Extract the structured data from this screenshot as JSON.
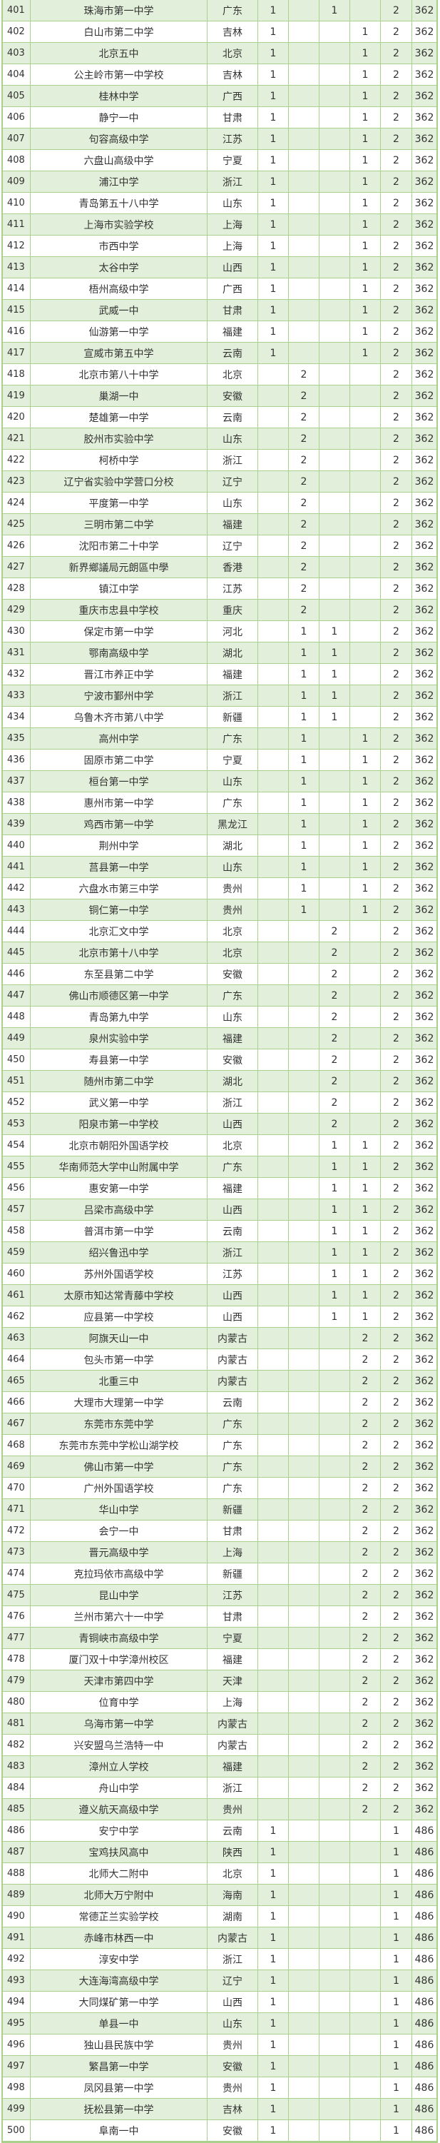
{
  "colors": {
    "stripe": "#e2efda",
    "border": "#a9d18e"
  },
  "rows": [
    [
      "401",
      "珠海市第一中学",
      "广东",
      "1",
      "",
      "1",
      "",
      "2",
      "362"
    ],
    [
      "402",
      "白山市第二中学",
      "吉林",
      "1",
      "",
      "",
      "1",
      "2",
      "362"
    ],
    [
      "403",
      "北京五中",
      "北京",
      "1",
      "",
      "",
      "1",
      "2",
      "362"
    ],
    [
      "404",
      "公主岭市第一中学校",
      "吉林",
      "1",
      "",
      "",
      "1",
      "2",
      "362"
    ],
    [
      "405",
      "桂林中学",
      "广西",
      "1",
      "",
      "",
      "1",
      "2",
      "362"
    ],
    [
      "406",
      "静宁一中",
      "甘肃",
      "1",
      "",
      "",
      "1",
      "2",
      "362"
    ],
    [
      "407",
      "句容高级中学",
      "江苏",
      "1",
      "",
      "",
      "1",
      "2",
      "362"
    ],
    [
      "408",
      "六盘山高级中学",
      "宁夏",
      "1",
      "",
      "",
      "1",
      "2",
      "362"
    ],
    [
      "409",
      "浦江中学",
      "浙江",
      "1",
      "",
      "",
      "1",
      "2",
      "362"
    ],
    [
      "410",
      "青岛第五十八中学",
      "山东",
      "1",
      "",
      "",
      "1",
      "2",
      "362"
    ],
    [
      "411",
      "上海市实验学校",
      "上海",
      "1",
      "",
      "",
      "1",
      "2",
      "362"
    ],
    [
      "412",
      "市西中学",
      "上海",
      "1",
      "",
      "",
      "1",
      "2",
      "362"
    ],
    [
      "413",
      "太谷中学",
      "山西",
      "1",
      "",
      "",
      "1",
      "2",
      "362"
    ],
    [
      "414",
      "梧州高级中学",
      "广西",
      "1",
      "",
      "",
      "1",
      "2",
      "362"
    ],
    [
      "415",
      "武威一中",
      "甘肃",
      "1",
      "",
      "",
      "1",
      "2",
      "362"
    ],
    [
      "416",
      "仙游第一中学",
      "福建",
      "1",
      "",
      "",
      "1",
      "2",
      "362"
    ],
    [
      "417",
      "宣威市第五中学",
      "云南",
      "1",
      "",
      "",
      "1",
      "2",
      "362"
    ],
    [
      "418",
      "北京市第八十中学",
      "北京",
      "",
      "2",
      "",
      "",
      "2",
      "362"
    ],
    [
      "419",
      "巢湖一中",
      "安徽",
      "",
      "2",
      "",
      "",
      "2",
      "362"
    ],
    [
      "420",
      "楚雄第一中学",
      "云南",
      "",
      "2",
      "",
      "",
      "2",
      "362"
    ],
    [
      "421",
      "胶州市实验中学",
      "山东",
      "",
      "2",
      "",
      "",
      "2",
      "362"
    ],
    [
      "422",
      "柯桥中学",
      "浙江",
      "",
      "2",
      "",
      "",
      "2",
      "362"
    ],
    [
      "423",
      "辽宁省实验中学营口分校",
      "辽宁",
      "",
      "2",
      "",
      "",
      "2",
      "362"
    ],
    [
      "424",
      "平度第一中学",
      "山东",
      "",
      "2",
      "",
      "",
      "2",
      "362"
    ],
    [
      "425",
      "三明市第二中学",
      "福建",
      "",
      "2",
      "",
      "",
      "2",
      "362"
    ],
    [
      "426",
      "沈阳市第二十中学",
      "辽宁",
      "",
      "2",
      "",
      "",
      "2",
      "362"
    ],
    [
      "427",
      "新界鄉議局元朗區中學",
      "香港",
      "",
      "2",
      "",
      "",
      "2",
      "362"
    ],
    [
      "428",
      "镇江中学",
      "江苏",
      "",
      "2",
      "",
      "",
      "2",
      "362"
    ],
    [
      "429",
      "重庆市忠县中学校",
      "重庆",
      "",
      "2",
      "",
      "",
      "2",
      "362"
    ],
    [
      "430",
      "保定市第一中学",
      "河北",
      "",
      "1",
      "1",
      "",
      "2",
      "362"
    ],
    [
      "431",
      "鄂南高级中学",
      "湖北",
      "",
      "1",
      "1",
      "",
      "2",
      "362"
    ],
    [
      "432",
      "晋江市养正中学",
      "福建",
      "",
      "1",
      "1",
      "",
      "2",
      "362"
    ],
    [
      "433",
      "宁波市鄞州中学",
      "浙江",
      "",
      "1",
      "1",
      "",
      "2",
      "362"
    ],
    [
      "434",
      "乌鲁木齐市第八中学",
      "新疆",
      "",
      "1",
      "1",
      "",
      "2",
      "362"
    ],
    [
      "435",
      "高州中学",
      "广东",
      "",
      "1",
      "",
      "1",
      "2",
      "362"
    ],
    [
      "436",
      "固原市第二中学",
      "宁夏",
      "",
      "1",
      "",
      "1",
      "2",
      "362"
    ],
    [
      "437",
      "桓台第一中学",
      "山东",
      "",
      "1",
      "",
      "1",
      "2",
      "362"
    ],
    [
      "438",
      "惠州市第一中学",
      "广东",
      "",
      "1",
      "",
      "1",
      "2",
      "362"
    ],
    [
      "439",
      "鸡西市第一中学",
      "黑龙江",
      "",
      "1",
      "",
      "1",
      "2",
      "362"
    ],
    [
      "440",
      "荆州中学",
      "湖北",
      "",
      "1",
      "",
      "1",
      "2",
      "362"
    ],
    [
      "441",
      "莒县第一中学",
      "山东",
      "",
      "1",
      "",
      "1",
      "2",
      "362"
    ],
    [
      "442",
      "六盘水市第三中学",
      "贵州",
      "",
      "1",
      "",
      "1",
      "2",
      "362"
    ],
    [
      "443",
      "铜仁第一中学",
      "贵州",
      "",
      "1",
      "",
      "1",
      "2",
      "362"
    ],
    [
      "444",
      "北京汇文中学",
      "北京",
      "",
      "",
      "2",
      "",
      "2",
      "362"
    ],
    [
      "445",
      "北京市第十八中学",
      "北京",
      "",
      "",
      "2",
      "",
      "2",
      "362"
    ],
    [
      "446",
      "东至县第二中学",
      "安徽",
      "",
      "",
      "2",
      "",
      "2",
      "362"
    ],
    [
      "447",
      "佛山市顺德区第一中学",
      "广东",
      "",
      "",
      "2",
      "",
      "2",
      "362"
    ],
    [
      "448",
      "青岛第九中学",
      "山东",
      "",
      "",
      "2",
      "",
      "2",
      "362"
    ],
    [
      "449",
      "泉州实验中学",
      "福建",
      "",
      "",
      "2",
      "",
      "2",
      "362"
    ],
    [
      "450",
      "寿县第一中学",
      "安徽",
      "",
      "",
      "2",
      "",
      "2",
      "362"
    ],
    [
      "451",
      "随州市第二中学",
      "湖北",
      "",
      "",
      "2",
      "",
      "2",
      "362"
    ],
    [
      "452",
      "武义第一中学",
      "浙江",
      "",
      "",
      "2",
      "",
      "2",
      "362"
    ],
    [
      "453",
      "阳泉市第一中学校",
      "山西",
      "",
      "",
      "2",
      "",
      "2",
      "362"
    ],
    [
      "454",
      "北京市朝阳外国语学校",
      "北京",
      "",
      "",
      "1",
      "1",
      "2",
      "362"
    ],
    [
      "455",
      "华南师范大学中山附属中学",
      "广东",
      "",
      "",
      "1",
      "1",
      "2",
      "362"
    ],
    [
      "456",
      "惠安第一中学",
      "福建",
      "",
      "",
      "1",
      "1",
      "2",
      "362"
    ],
    [
      "457",
      "吕梁市高级中学",
      "山西",
      "",
      "",
      "1",
      "1",
      "2",
      "362"
    ],
    [
      "458",
      "普洱市第一中学",
      "云南",
      "",
      "",
      "1",
      "1",
      "2",
      "362"
    ],
    [
      "459",
      "绍兴鲁迅中学",
      "浙江",
      "",
      "",
      "1",
      "1",
      "2",
      "362"
    ],
    [
      "460",
      "苏州外国语学校",
      "江苏",
      "",
      "",
      "1",
      "1",
      "2",
      "362"
    ],
    [
      "461",
      "太原市知达常青藤中学校",
      "山西",
      "",
      "",
      "1",
      "1",
      "2",
      "362"
    ],
    [
      "462",
      "应县第一中学校",
      "山西",
      "",
      "",
      "1",
      "1",
      "2",
      "362"
    ],
    [
      "463",
      "阿旗天山一中",
      "内蒙古",
      "",
      "",
      "",
      "2",
      "2",
      "362"
    ],
    [
      "464",
      "包头市第一中学",
      "内蒙古",
      "",
      "",
      "",
      "2",
      "2",
      "362"
    ],
    [
      "465",
      "北重三中",
      "内蒙古",
      "",
      "",
      "",
      "2",
      "2",
      "362"
    ],
    [
      "466",
      "大理市大理第一中学",
      "云南",
      "",
      "",
      "",
      "2",
      "2",
      "362"
    ],
    [
      "467",
      "东莞市东莞中学",
      "广东",
      "",
      "",
      "",
      "2",
      "2",
      "362"
    ],
    [
      "468",
      "东莞市东莞中学松山湖学校",
      "广东",
      "",
      "",
      "",
      "2",
      "2",
      "362"
    ],
    [
      "469",
      "佛山市第一中学",
      "广东",
      "",
      "",
      "",
      "2",
      "2",
      "362"
    ],
    [
      "470",
      "广州外国语学校",
      "广东",
      "",
      "",
      "",
      "2",
      "2",
      "362"
    ],
    [
      "471",
      "华山中学",
      "新疆",
      "",
      "",
      "",
      "2",
      "2",
      "362"
    ],
    [
      "472",
      "会宁一中",
      "甘肃",
      "",
      "",
      "",
      "2",
      "2",
      "362"
    ],
    [
      "473",
      "晋元高级中学",
      "上海",
      "",
      "",
      "",
      "2",
      "2",
      "362"
    ],
    [
      "474",
      "克拉玛依市高级中学",
      "新疆",
      "",
      "",
      "",
      "2",
      "2",
      "362"
    ],
    [
      "475",
      "昆山中学",
      "江苏",
      "",
      "",
      "",
      "2",
      "2",
      "362"
    ],
    [
      "476",
      "兰州市第六十一中学",
      "甘肃",
      "",
      "",
      "",
      "2",
      "2",
      "362"
    ],
    [
      "477",
      "青铜峡市高级中学",
      "宁夏",
      "",
      "",
      "",
      "2",
      "2",
      "362"
    ],
    [
      "478",
      "厦门双十中学漳州校区",
      "福建",
      "",
      "",
      "",
      "2",
      "2",
      "362"
    ],
    [
      "479",
      "天津市第四中学",
      "天津",
      "",
      "",
      "",
      "2",
      "2",
      "362"
    ],
    [
      "480",
      "位育中学",
      "上海",
      "",
      "",
      "",
      "2",
      "2",
      "362"
    ],
    [
      "481",
      "乌海市第一中学",
      "内蒙古",
      "",
      "",
      "",
      "2",
      "2",
      "362"
    ],
    [
      "482",
      "兴安盟乌兰浩特一中",
      "内蒙古",
      "",
      "",
      "",
      "2",
      "2",
      "362"
    ],
    [
      "483",
      "漳州立人学校",
      "福建",
      "",
      "",
      "",
      "2",
      "2",
      "362"
    ],
    [
      "484",
      "舟山中学",
      "浙江",
      "",
      "",
      "",
      "2",
      "2",
      "362"
    ],
    [
      "485",
      "遵义航天高级中学",
      "贵州",
      "",
      "",
      "",
      "2",
      "2",
      "362"
    ],
    [
      "486",
      "安宁中学",
      "云南",
      "1",
      "",
      "",
      "",
      "1",
      "486"
    ],
    [
      "487",
      "宝鸡扶风高中",
      "陕西",
      "1",
      "",
      "",
      "",
      "1",
      "486"
    ],
    [
      "488",
      "北师大二附中",
      "北京",
      "1",
      "",
      "",
      "",
      "1",
      "486"
    ],
    [
      "489",
      "北师大万宁附中",
      "海南",
      "1",
      "",
      "",
      "",
      "1",
      "486"
    ],
    [
      "490",
      "常德芷兰实验学校",
      "湖南",
      "1",
      "",
      "",
      "",
      "1",
      "486"
    ],
    [
      "491",
      "赤峰市林西一中",
      "内蒙古",
      "1",
      "",
      "",
      "",
      "1",
      "486"
    ],
    [
      "492",
      "淳安中学",
      "浙江",
      "1",
      "",
      "",
      "",
      "1",
      "486"
    ],
    [
      "493",
      "大连海湾高级中学",
      "辽宁",
      "1",
      "",
      "",
      "",
      "1",
      "486"
    ],
    [
      "494",
      "大同煤矿第一中学",
      "山西",
      "1",
      "",
      "",
      "",
      "1",
      "486"
    ],
    [
      "495",
      "单县一中",
      "山东",
      "1",
      "",
      "",
      "",
      "1",
      "486"
    ],
    [
      "496",
      "独山县民族中学",
      "贵州",
      "1",
      "",
      "",
      "",
      "1",
      "486"
    ],
    [
      "497",
      "繁昌第一中学",
      "安徽",
      "1",
      "",
      "",
      "",
      "1",
      "486"
    ],
    [
      "498",
      "凤冈县第一中学",
      "贵州",
      "1",
      "",
      "",
      "",
      "1",
      "486"
    ],
    [
      "499",
      "抚松县第一中学",
      "吉林",
      "1",
      "",
      "",
      "",
      "1",
      "486"
    ],
    [
      "500",
      "阜南一中",
      "安徽",
      "1",
      "",
      "",
      "",
      "1",
      "486"
    ]
  ]
}
